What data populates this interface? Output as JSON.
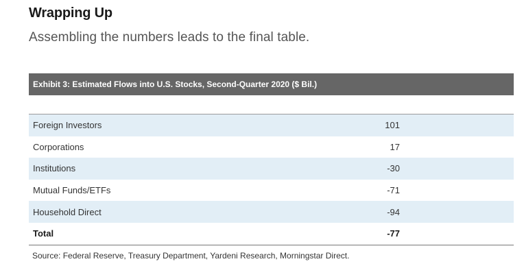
{
  "heading": "Wrapping Up",
  "subheading": "Assembling the numbers leads to the final table.",
  "exhibit": {
    "title": "Exhibit 3: Estimated Flows into U.S. Stocks, Second-Quarter 2020 ($ Bil.)",
    "rows": [
      {
        "label": "Foreign Investors",
        "value": "101"
      },
      {
        "label": "Corporations",
        "value": "17"
      },
      {
        "label": "Institutions",
        "value": "-30"
      },
      {
        "label": "Mutual Funds/ETFs",
        "value": "-71"
      },
      {
        "label": "Household Direct",
        "value": "-94"
      },
      {
        "label": "Total",
        "value": "-77"
      }
    ],
    "source": "Source: Federal Reserve, Treasury Department, Yardeni Research, Morningstar Direct."
  }
}
